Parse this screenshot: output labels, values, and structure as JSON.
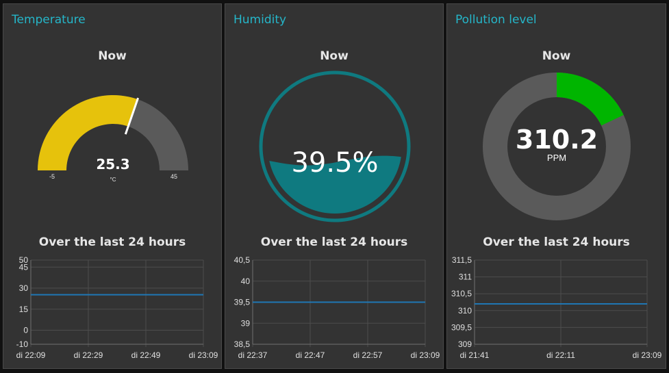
{
  "colors": {
    "title": "#25b6c9",
    "gauge_fill": "#e6c20c",
    "gauge_track": "#5a5a5a",
    "water": "#0f7a80",
    "donut_fill": "#00b500",
    "donut_track": "#5a5a5a",
    "line": "#1f77b4"
  },
  "temperature": {
    "title": "Temperature",
    "now_label": "Now",
    "value": 25.3,
    "value_text": "25.3",
    "unit": "°C",
    "min": -5,
    "max": 45,
    "min_text": "-5",
    "max_text": "45",
    "history_label": "Over the last 24 hours",
    "chart_data": {
      "type": "line",
      "title": "Over the last 24 hours",
      "ylim": [
        -10,
        50
      ],
      "y_ticks": [
        -10,
        0,
        15,
        30,
        45,
        50
      ],
      "y_tick_labels": [
        "-10",
        "0",
        "15",
        "30",
        "45",
        "50"
      ],
      "x_tick_labels": [
        "di 22:09",
        "di 22:29",
        "di 22:49",
        "di 23:09"
      ],
      "series": [
        {
          "name": "Temperature",
          "values": [
            25.3,
            25.3
          ]
        }
      ]
    }
  },
  "humidity": {
    "title": "Humidity",
    "now_label": "Now",
    "value": 39.5,
    "value_text": "39.5%",
    "history_label": "Over the last 24 hours",
    "chart_data": {
      "type": "line",
      "title": "Over the last 24 hours",
      "ylim": [
        38.5,
        40.5
      ],
      "y_ticks": [
        38.5,
        39,
        39.5,
        40,
        40.5
      ],
      "y_tick_labels": [
        "38,5",
        "39",
        "39,5",
        "40",
        "40,5"
      ],
      "x_tick_labels": [
        "di 22:37",
        "di 22:47",
        "di 22:57",
        "di 23:09"
      ],
      "series": [
        {
          "name": "Humidity",
          "values": [
            39.5,
            39.5
          ]
        }
      ]
    }
  },
  "pollution": {
    "title": "Pollution level",
    "now_label": "Now",
    "value": 310.2,
    "value_text": "310.2",
    "unit": "PPM",
    "fill_fraction": 0.18,
    "history_label": "Over the last 24 hours",
    "chart_data": {
      "type": "line",
      "title": "Over the last 24 hours",
      "ylim": [
        309,
        311.5
      ],
      "y_ticks": [
        309,
        309.5,
        310,
        310.5,
        311,
        311.5
      ],
      "y_tick_labels": [
        "309",
        "309,5",
        "310",
        "310,5",
        "311",
        "311,5"
      ],
      "x_tick_labels": [
        "di 21:41",
        "di 22:11",
        "di 23:09"
      ],
      "series": [
        {
          "name": "Pollution level",
          "values": [
            310.2,
            310.2
          ]
        }
      ]
    }
  }
}
